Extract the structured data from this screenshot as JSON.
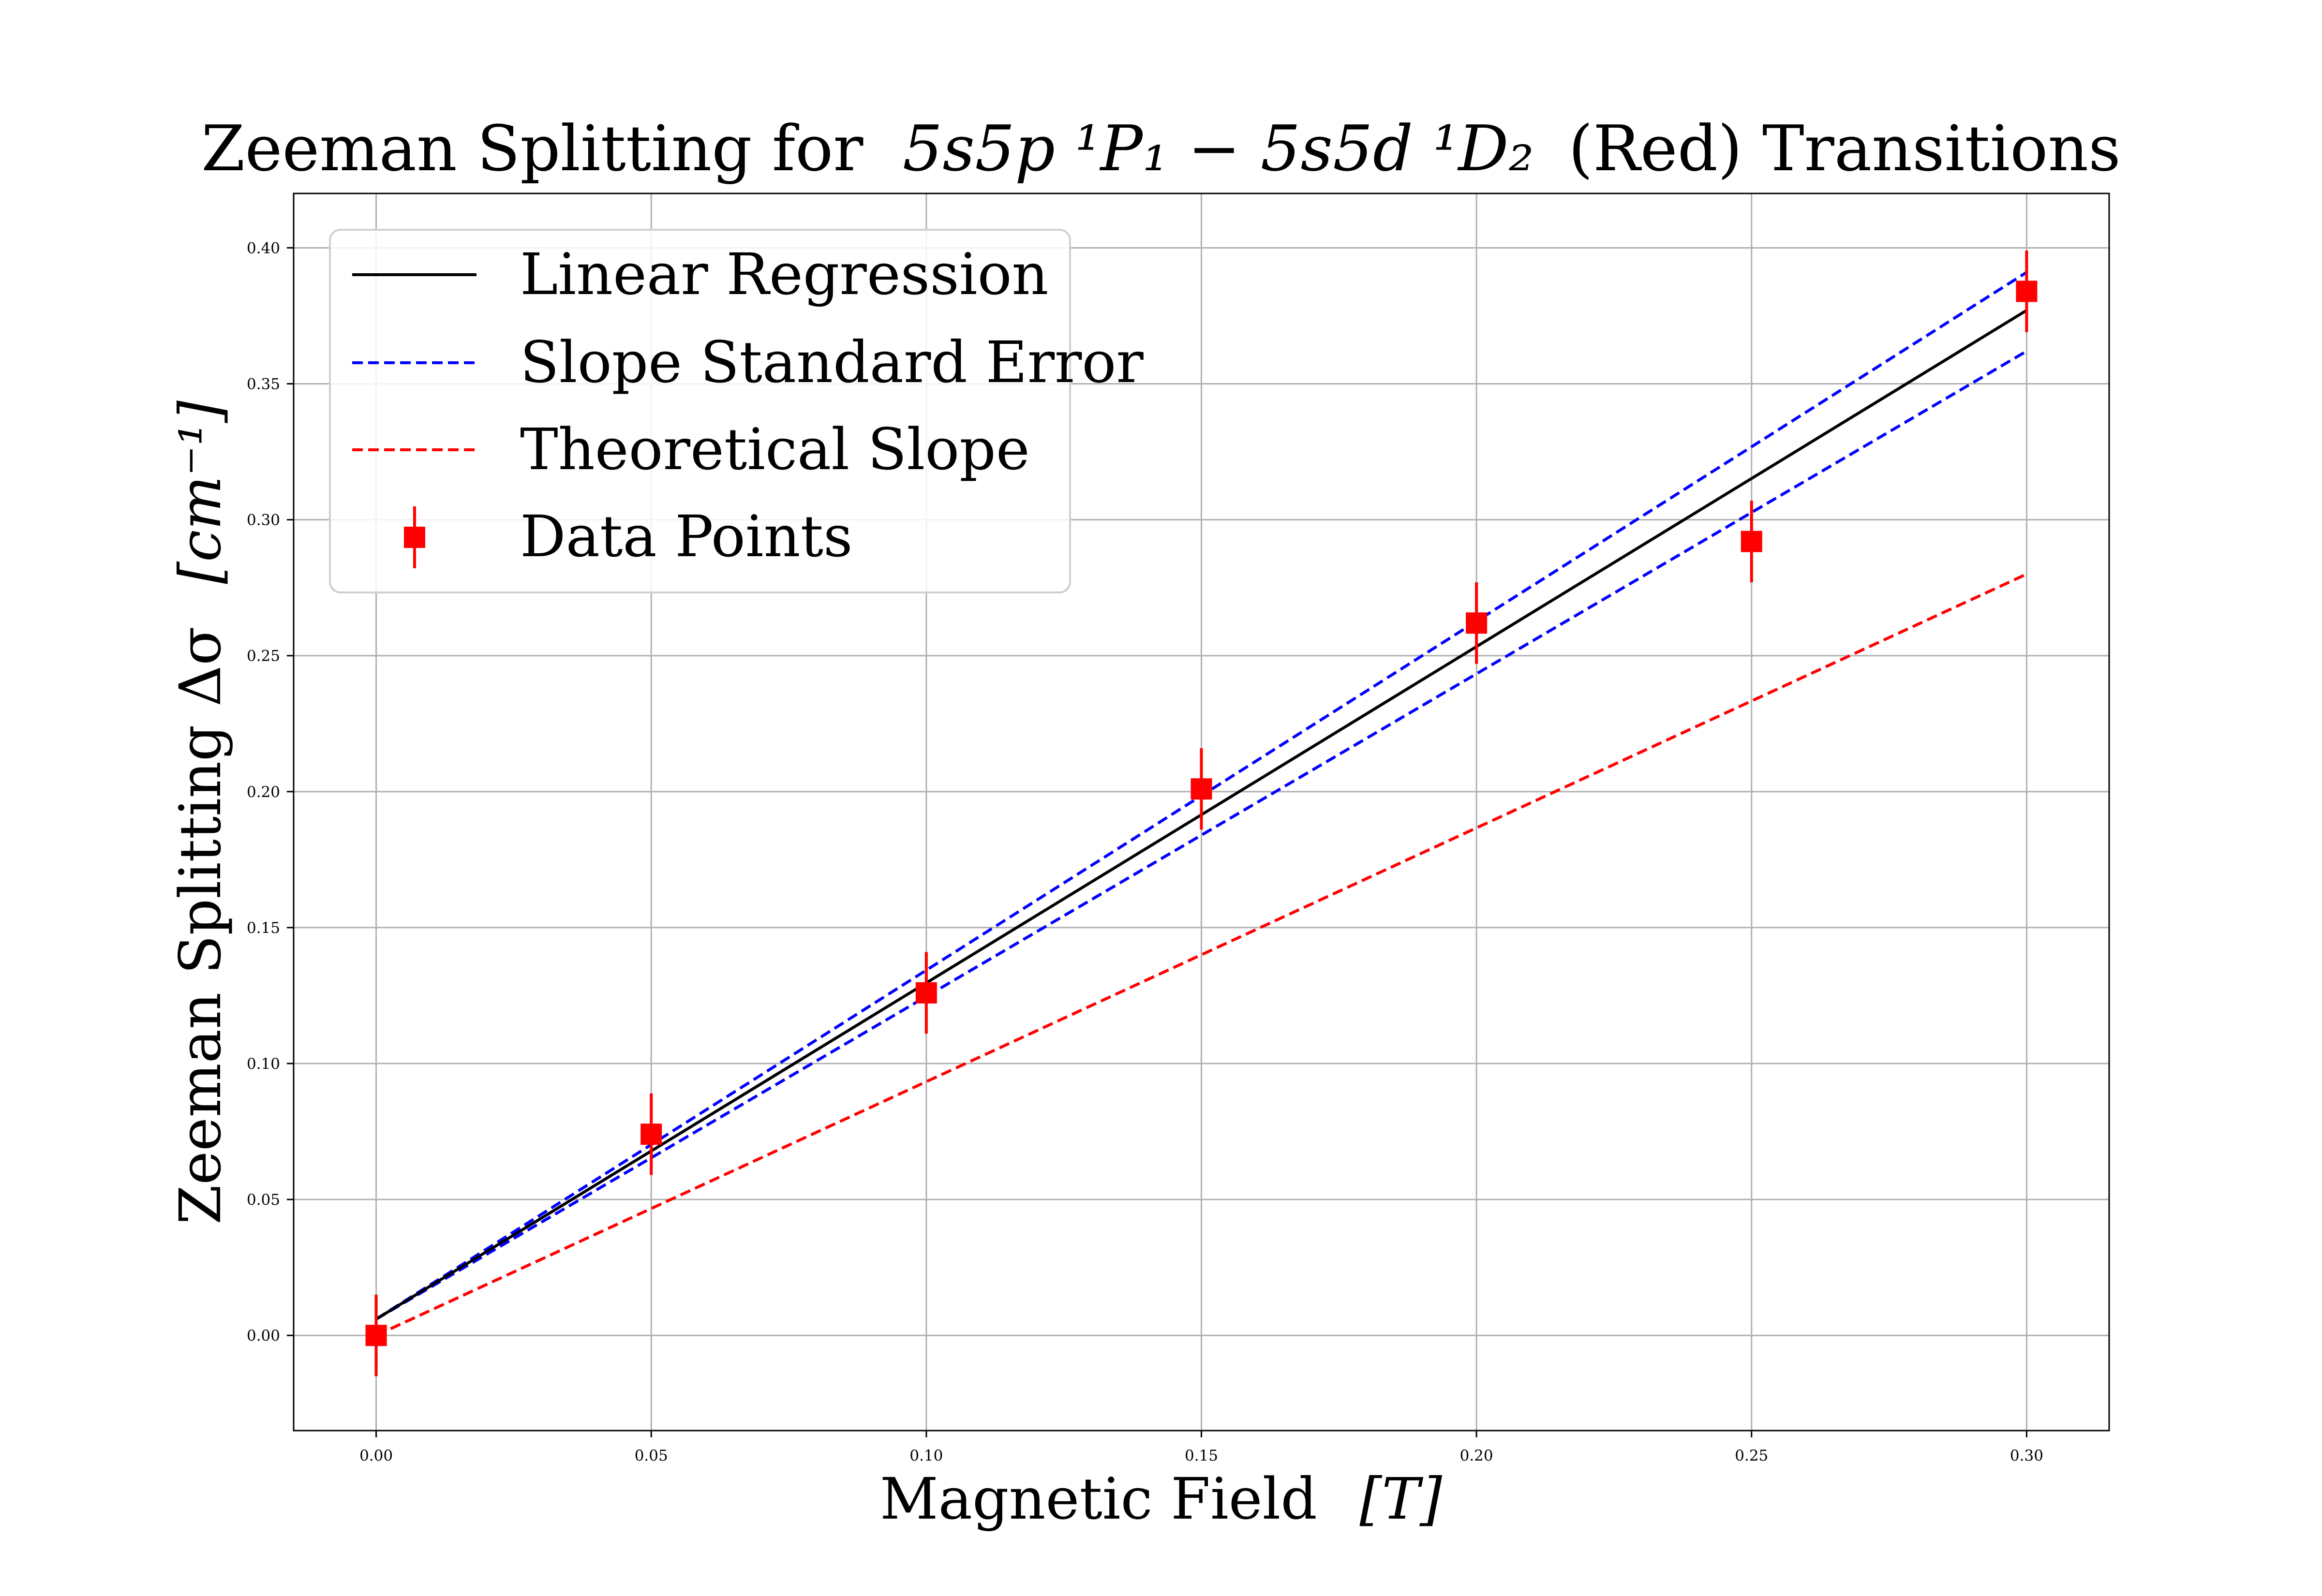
{
  "chart_data": {
    "type": "scatter",
    "title_parts": {
      "prefix": "Zeeman Splitting for",
      "math": "5s5p ¹P₁ − 5s5d ¹D₂",
      "suffix": "(Red) Transitions"
    },
    "xlabel": "Magnetic Field",
    "xlabel_unit": "[T]",
    "ylabel": "Zeeman Splitting  Δσ",
    "ylabel_unit": "[cm⁻¹]",
    "xlim": [
      -0.015,
      0.315
    ],
    "ylim": [
      -0.035,
      0.42
    ],
    "xticks": [
      0.0,
      0.05,
      0.1,
      0.15,
      0.2,
      0.25,
      0.3
    ],
    "xtick_labels": [
      "0.00",
      "0.05",
      "0.10",
      "0.15",
      "0.20",
      "0.25",
      "0.30"
    ],
    "yticks": [
      0.0,
      0.05,
      0.1,
      0.15,
      0.2,
      0.25,
      0.3,
      0.35,
      0.4
    ],
    "ytick_labels": [
      "0.00",
      "0.05",
      "0.10",
      "0.15",
      "0.20",
      "0.25",
      "0.30",
      "0.35",
      "0.40"
    ],
    "grid": true,
    "legend_position": "top-left",
    "series": [
      {
        "name": "Linear Regression",
        "kind": "line",
        "style": "solid",
        "color": "#000000",
        "x": [
          0.0,
          0.3
        ],
        "y": [
          0.006,
          0.377
        ]
      },
      {
        "name": "Slope Standard Error",
        "kind": "line",
        "style": "dashed",
        "color": "#0000ff",
        "x": [
          0.0,
          0.3
        ],
        "y": [
          0.006,
          0.391
        ]
      },
      {
        "name": "",
        "kind": "line",
        "style": "dashed",
        "color": "#0000ff",
        "x": [
          0.0,
          0.3
        ],
        "y": [
          0.006,
          0.362
        ]
      },
      {
        "name": "Theoretical Slope",
        "kind": "line",
        "style": "dashed",
        "color": "#ff0000",
        "x": [
          0.0,
          0.3
        ],
        "y": [
          0.0,
          0.28
        ]
      },
      {
        "name": "Data Points",
        "kind": "errorbar",
        "color": "#ff0000",
        "x": [
          0.0,
          0.05,
          0.1,
          0.15,
          0.2,
          0.25,
          0.3
        ],
        "y": [
          0.0,
          0.074,
          0.126,
          0.201,
          0.262,
          0.292,
          0.384
        ],
        "yerr": 0.015
      }
    ]
  }
}
